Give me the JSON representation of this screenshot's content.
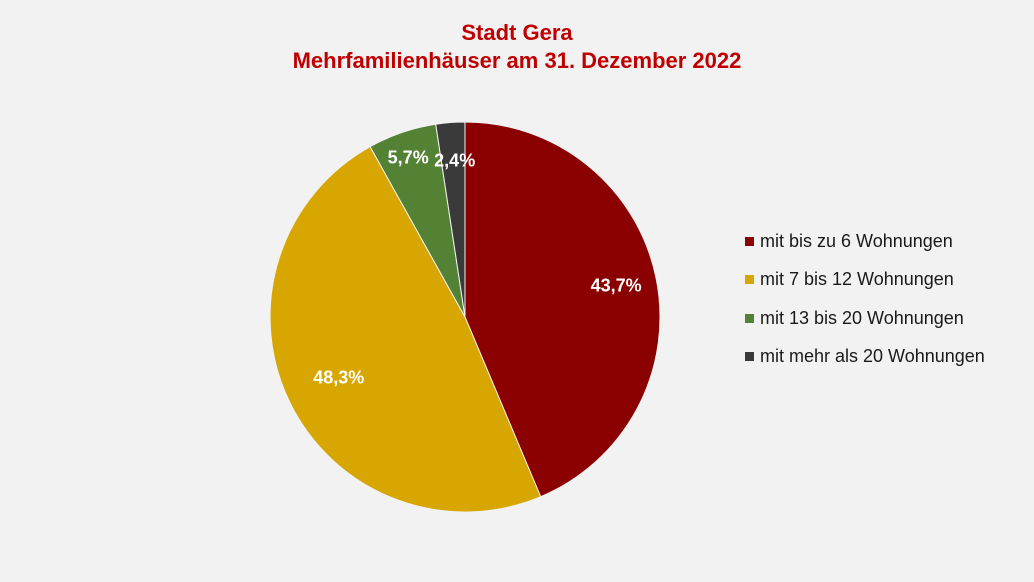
{
  "chart_data": {
    "type": "pie",
    "title": "Stadt Gera",
    "subtitle": "Mehrfamilienhäuser am 31. Dezember 2022",
    "start_angle_deg": 0,
    "direction": "clockwise",
    "legend_position": "right",
    "slices": [
      {
        "label": "mit bis zu 6 Wohnungen",
        "value": 43.7,
        "display": "43,7%",
        "color": "#8b0000"
      },
      {
        "label": "mit 7 bis 12 Wohnungen",
        "value": 48.3,
        "display": "48,3%",
        "color": "#d8a600"
      },
      {
        "label": "mit 13 bis 20 Wohnungen",
        "value": 5.7,
        "display": "5,7%",
        "color": "#548235"
      },
      {
        "label": "mit mehr als 20 Wohnungen",
        "value": 2.4,
        "display": "2,4%",
        "color": "#3a3a3a"
      }
    ]
  }
}
